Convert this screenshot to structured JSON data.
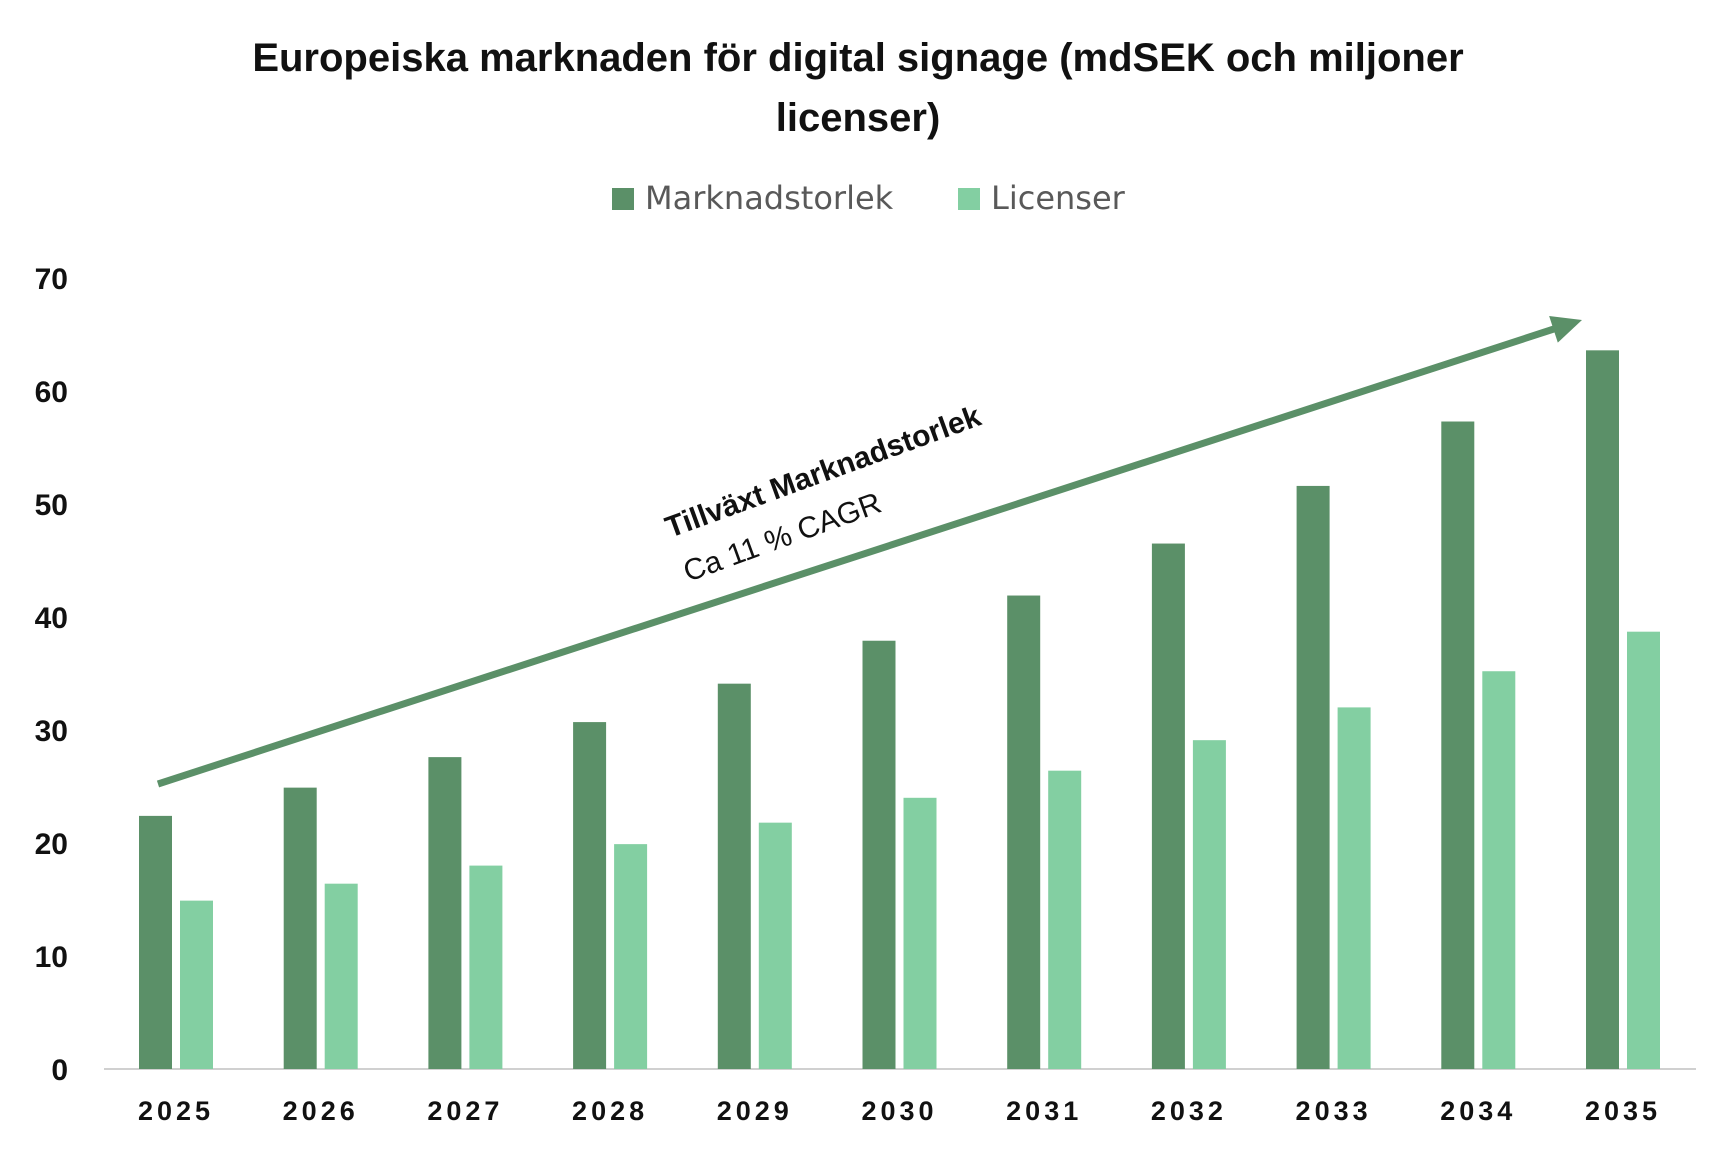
{
  "chart_data": {
    "type": "bar",
    "title": "Europeiska marknaden för digital signage (mdSEK och miljoner licenser)",
    "title_lines": [
      "Europeiska marknaden för digital signage (mdSEK och miljoner",
      "licenser)"
    ],
    "xlabel": "",
    "ylabel": "",
    "categories": [
      "2025",
      "2026",
      "2027",
      "2028",
      "2029",
      "2030",
      "2031",
      "2032",
      "2033",
      "2034",
      "2035"
    ],
    "series": [
      {
        "name": "Marknadstorlek",
        "color": "#5b9068",
        "values": [
          22.4,
          24.9,
          27.6,
          30.7,
          34.1,
          37.9,
          41.9,
          46.5,
          51.6,
          57.3,
          63.6
        ]
      },
      {
        "name": "Licenser",
        "color": "#83cfa2",
        "values": [
          14.9,
          16.4,
          18.0,
          19.9,
          21.8,
          24.0,
          26.4,
          29.1,
          32.0,
          35.2,
          38.7
        ]
      }
    ],
    "yticks": [
      0,
      10,
      20,
      30,
      40,
      50,
      60,
      70
    ],
    "ylim": [
      0,
      70
    ],
    "grid": false,
    "legend_position": "top",
    "annotation": {
      "line1": "Tillväxt Marknadstorlek",
      "line2": "Ca 11  % CAGR",
      "arrow_color": "#5b9068"
    }
  }
}
